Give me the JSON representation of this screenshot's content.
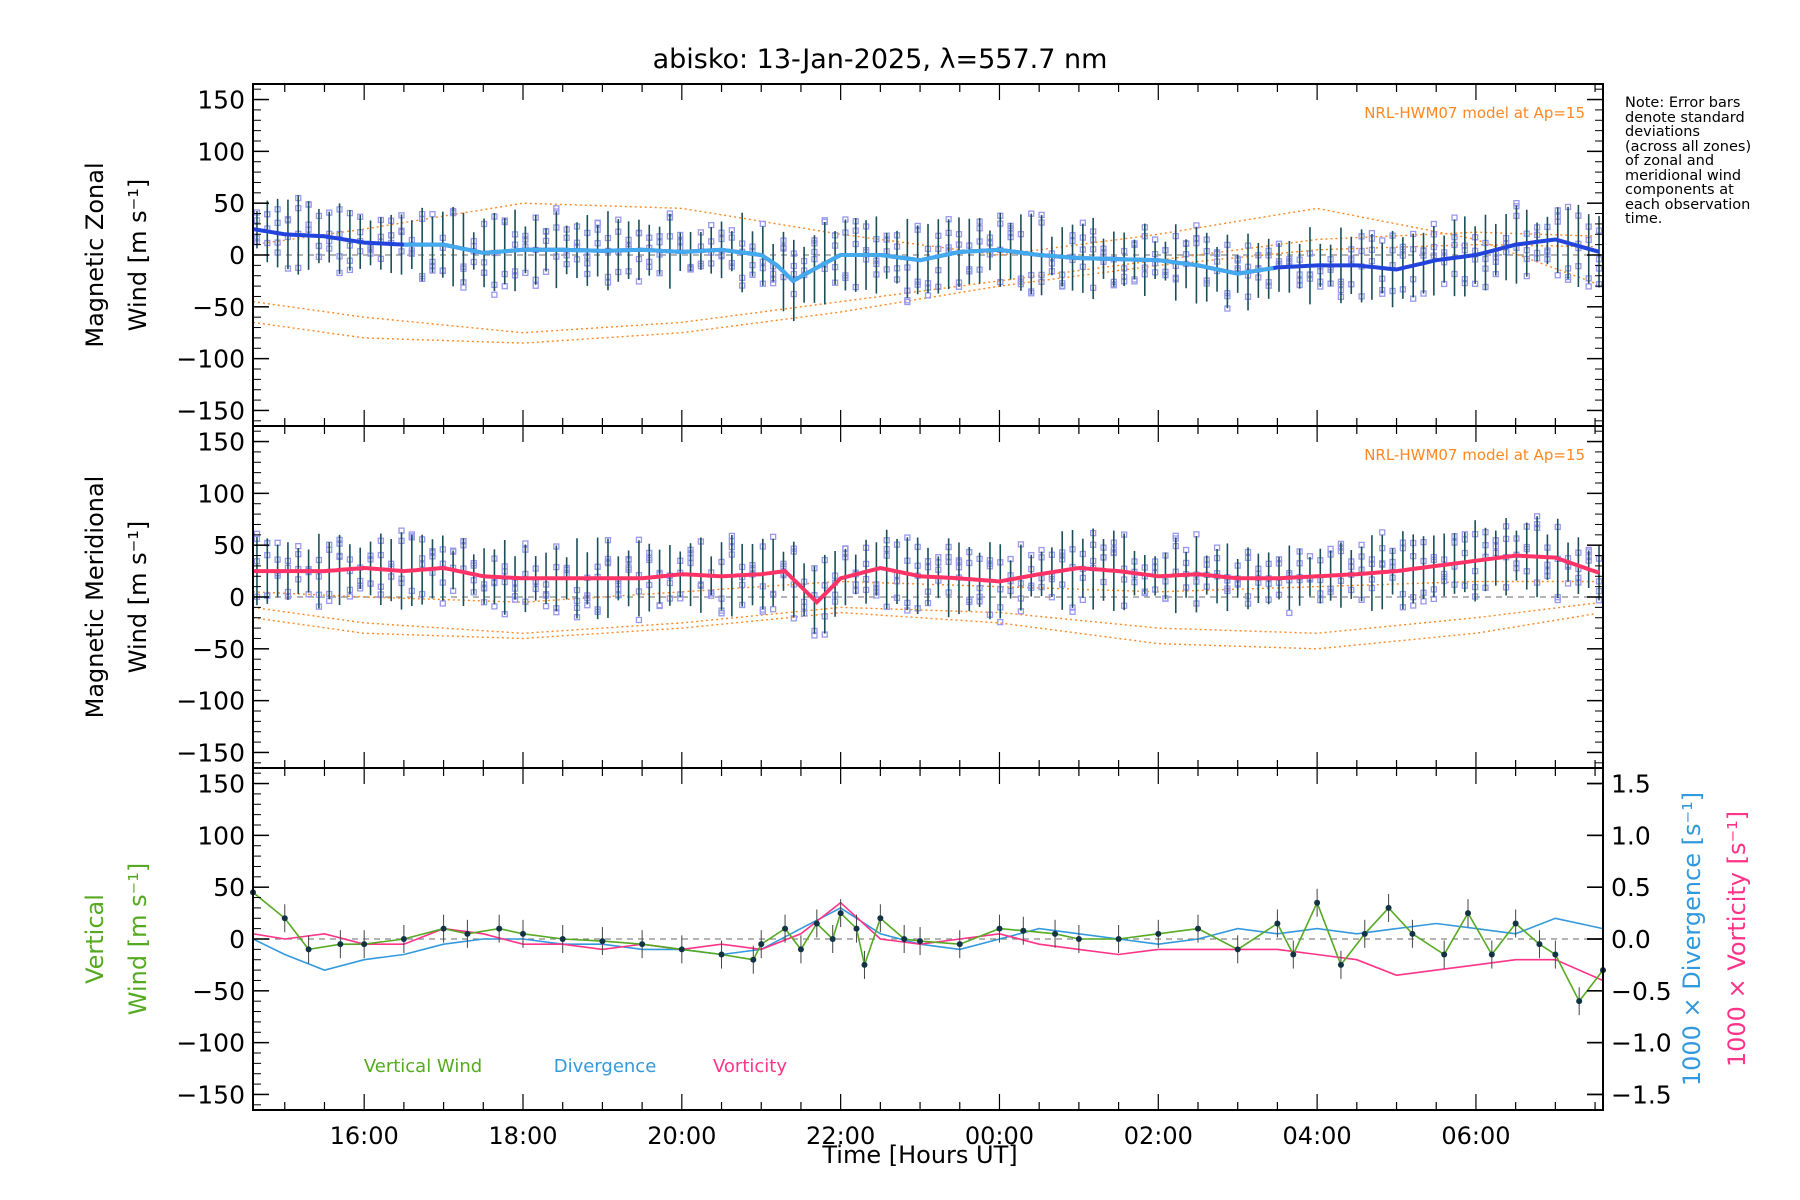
{
  "title": "abisko: 13-Jan-2025, λ=557.7 nm",
  "note_lines": [
    "Note: Error bars",
    "denote standard",
    "deviations",
    "(across all zones)",
    "of zonal and",
    "meridional wind",
    "components at",
    "each observation",
    "time."
  ],
  "xlabel": "Time [Hours UT]",
  "model_label": "NRL-HWM07 model at Ap=15",
  "colors": {
    "zonal": "#2244dd",
    "zonal_light": "#44aaee",
    "meridional": "#ff3366",
    "vertical": "#55aa22",
    "divergence": "#3399dd",
    "vorticity": "#ff3388",
    "model": "#ff8822",
    "scatter": "#9999ee",
    "errorbar": "#000000",
    "zeroline": "#888888"
  },
  "chart_data": [
    {
      "type": "line",
      "ylabel_line1": "Magnetic Zonal",
      "ylabel_line2": "Wind [m s⁻¹]",
      "ylim": [
        -165,
        165
      ],
      "yticks": [
        "150",
        "100",
        "50",
        "0",
        "−50",
        "−100",
        "−150"
      ],
      "ytick_values": [
        150,
        100,
        50,
        0,
        -50,
        -100,
        -150
      ],
      "xlim_hours": [
        14.6,
        31.6
      ],
      "series": [
        {
          "x_hours": [
            14.6,
            15.0,
            15.5,
            16.0,
            16.5,
            17.0,
            17.5,
            18.0,
            18.5,
            19.0,
            19.5,
            20.0,
            20.5,
            21.0,
            21.2,
            21.4,
            21.8,
            22.0,
            22.5,
            23.0,
            23.5,
            24.0,
            24.5,
            25.0,
            25.5,
            26.0,
            26.5,
            27.0,
            27.5,
            28.0,
            28.5,
            29.0,
            29.5,
            30.0,
            30.5,
            31.0,
            31.6
          ],
          "values": [
            25,
            20,
            18,
            12,
            10,
            10,
            2,
            5,
            5,
            4,
            5,
            3,
            5,
            0,
            -10,
            -25,
            -8,
            0,
            0,
            -5,
            3,
            5,
            0,
            -3,
            -4,
            -5,
            -10,
            -18,
            -12,
            -10,
            -10,
            -14,
            -5,
            0,
            10,
            15,
            2
          ]
        }
      ],
      "model_series": [
        {
          "x_hours": [
            14.6,
            16.0,
            18.0,
            20.0,
            22.0,
            24.0,
            26.0,
            28.0,
            30.0,
            31.6
          ],
          "values": [
            -65,
            -80,
            -85,
            -75,
            -55,
            -30,
            -10,
            5,
            10,
            8
          ]
        },
        {
          "x_hours": [
            14.6,
            16.0,
            18.0,
            20.0,
            22.0,
            24.0,
            26.0,
            28.0,
            30.0,
            31.6
          ],
          "values": [
            -45,
            -60,
            -75,
            -65,
            -45,
            -25,
            -5,
            15,
            22,
            18
          ]
        },
        {
          "x_hours": [
            14.6,
            16.0,
            18.0,
            20.0,
            22.0,
            24.0,
            26.0,
            28.0,
            30.0,
            31.6
          ],
          "values": [
            10,
            25,
            50,
            45,
            20,
            0,
            20,
            45,
            15,
            -30
          ]
        }
      ]
    },
    {
      "type": "line",
      "ylabel_line1": "Magnetic Meridional",
      "ylabel_line2": "Wind [m s⁻¹]",
      "ylim": [
        -165,
        165
      ],
      "yticks": [
        "150",
        "100",
        "50",
        "0",
        "−50",
        "−100",
        "−150"
      ],
      "ytick_values": [
        150,
        100,
        50,
        0,
        -50,
        -100,
        -150
      ],
      "xlim_hours": [
        14.6,
        31.6
      ],
      "series": [
        {
          "x_hours": [
            14.6,
            15.0,
            15.5,
            16.0,
            16.5,
            17.0,
            17.5,
            18.0,
            18.5,
            19.0,
            19.5,
            20.0,
            20.5,
            21.0,
            21.3,
            21.7,
            22.0,
            22.5,
            23.0,
            23.5,
            24.0,
            24.5,
            25.0,
            25.5,
            26.0,
            26.5,
            27.0,
            27.5,
            28.0,
            28.5,
            29.0,
            29.5,
            30.0,
            30.5,
            31.0,
            31.6
          ],
          "values": [
            25,
            25,
            25,
            28,
            25,
            28,
            20,
            18,
            18,
            18,
            18,
            22,
            20,
            22,
            25,
            -5,
            18,
            28,
            20,
            18,
            15,
            22,
            28,
            25,
            20,
            22,
            18,
            18,
            20,
            22,
            25,
            30,
            35,
            40,
            38,
            22
          ]
        }
      ],
      "model_series": [
        {
          "x_hours": [
            14.6,
            16.0,
            18.0,
            20.0,
            22.0,
            24.0,
            26.0,
            28.0,
            30.0,
            31.6
          ],
          "values": [
            -20,
            -35,
            -40,
            -30,
            -15,
            -25,
            -45,
            -50,
            -35,
            -15
          ]
        },
        {
          "x_hours": [
            14.6,
            16.0,
            18.0,
            20.0,
            22.0,
            24.0,
            26.0,
            28.0,
            30.0,
            31.6
          ],
          "values": [
            -10,
            -25,
            -35,
            -25,
            -10,
            -15,
            -30,
            -35,
            -20,
            -5
          ]
        },
        {
          "x_hours": [
            14.6,
            16.0,
            18.0,
            20.0,
            22.0,
            24.0,
            26.0,
            28.0,
            30.0,
            31.6
          ],
          "values": [
            5,
            0,
            -5,
            5,
            15,
            10,
            5,
            10,
            15,
            15
          ]
        }
      ]
    },
    {
      "type": "line",
      "ylabel_line1": "Vertical",
      "ylabel_line2": "Wind [m s⁻¹]",
      "right_label_1": "1000 × Divergence [s⁻¹]",
      "right_label_2": "1000 × Vorticity [s⁻¹]",
      "ylim": [
        -165,
        165
      ],
      "yticks": [
        "150",
        "100",
        "50",
        "0",
        "−50",
        "−100",
        "−150"
      ],
      "ytick_values": [
        150,
        100,
        50,
        0,
        -50,
        -100,
        -150
      ],
      "y2lim": [
        -1.65,
        1.65
      ],
      "y2ticks": [
        "1.5",
        "1.0",
        "0.5",
        "0.0",
        "−0.5",
        "−1.0",
        "−1.5"
      ],
      "y2tick_values": [
        1.5,
        1.0,
        0.5,
        0.0,
        -0.5,
        -1.0,
        -1.5
      ],
      "xlim_hours": [
        14.6,
        31.6
      ],
      "xticks": [
        "16:00",
        "18:00",
        "20:00",
        "22:00",
        "00:00",
        "02:00",
        "04:00",
        "06:00"
      ],
      "xtick_hours": [
        16,
        18,
        20,
        22,
        24,
        26,
        28,
        30
      ],
      "series": [
        {
          "name": "Vertical Wind",
          "x_hours": [
            14.6,
            15.0,
            15.3,
            15.7,
            16.0,
            16.5,
            17.0,
            17.3,
            17.7,
            18.0,
            18.5,
            19.0,
            19.5,
            20.0,
            20.5,
            20.9,
            21.0,
            21.3,
            21.5,
            21.7,
            21.9,
            22.0,
            22.2,
            22.3,
            22.5,
            22.8,
            23.0,
            23.5,
            24.0,
            24.3,
            24.7,
            25.0,
            25.5,
            26.0,
            26.5,
            27.0,
            27.5,
            27.7,
            28.0,
            28.3,
            28.6,
            28.9,
            29.2,
            29.6,
            29.9,
            30.2,
            30.5,
            30.8,
            31.0,
            31.3,
            31.6
          ],
          "values": [
            45,
            20,
            -10,
            -5,
            -5,
            0,
            10,
            5,
            10,
            5,
            0,
            -2,
            -5,
            -10,
            -15,
            -20,
            -5,
            10,
            -10,
            15,
            0,
            25,
            10,
            -25,
            20,
            0,
            -2,
            -5,
            10,
            8,
            5,
            0,
            0,
            5,
            10,
            -10,
            15,
            -15,
            35,
            -25,
            5,
            30,
            5,
            -15,
            25,
            -15,
            15,
            -5,
            -15,
            -60,
            -30
          ]
        },
        {
          "name": "Divergence",
          "x_hours": [
            14.6,
            15.0,
            15.5,
            16.0,
            16.5,
            17.0,
            17.5,
            18.0,
            18.5,
            19.0,
            19.5,
            20.0,
            20.5,
            21.0,
            21.5,
            22.0,
            22.5,
            23.0,
            23.5,
            24.0,
            24.5,
            25.0,
            25.5,
            26.0,
            26.5,
            27.0,
            27.5,
            28.0,
            28.5,
            29.0,
            29.5,
            30.0,
            30.5,
            31.0,
            31.6
          ],
          "values": [
            0.0,
            -0.15,
            -0.3,
            -0.2,
            -0.15,
            -0.05,
            0.0,
            0.0,
            -0.05,
            -0.05,
            -0.1,
            -0.1,
            -0.15,
            -0.1,
            0.1,
            0.3,
            0.05,
            -0.05,
            -0.1,
            0.0,
            0.1,
            0.05,
            0.0,
            -0.05,
            0.0,
            0.1,
            0.05,
            0.1,
            0.05,
            0.1,
            0.15,
            0.1,
            0.05,
            0.2,
            0.1
          ]
        },
        {
          "name": "Vorticity",
          "x_hours": [
            14.6,
            15.0,
            15.5,
            16.0,
            16.5,
            17.0,
            17.5,
            18.0,
            18.5,
            19.0,
            19.5,
            20.0,
            20.5,
            21.0,
            21.5,
            22.0,
            22.5,
            23.0,
            23.5,
            24.0,
            24.5,
            25.0,
            25.5,
            26.0,
            26.5,
            27.0,
            27.5,
            28.0,
            28.5,
            29.0,
            29.5,
            30.0,
            30.5,
            31.0,
            31.6
          ],
          "values": [
            0.05,
            0.0,
            0.05,
            -0.05,
            -0.05,
            0.1,
            0.05,
            -0.05,
            -0.05,
            -0.1,
            -0.05,
            -0.1,
            -0.05,
            -0.1,
            0.05,
            0.35,
            0.0,
            -0.05,
            0.0,
            0.05,
            -0.05,
            -0.1,
            -0.15,
            -0.1,
            -0.1,
            -0.1,
            -0.1,
            -0.15,
            -0.2,
            -0.35,
            -0.3,
            -0.25,
            -0.2,
            -0.2,
            -0.4
          ]
        }
      ]
    }
  ],
  "legend": [
    {
      "label": "Vertical Wind"
    },
    {
      "label": "Divergence"
    },
    {
      "label": "Vorticity"
    }
  ]
}
